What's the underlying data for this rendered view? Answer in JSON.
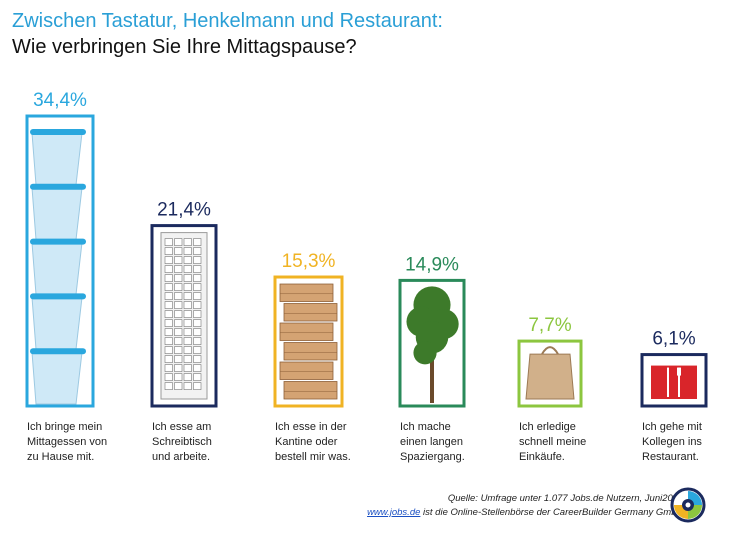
{
  "title": "Zwischen Tastatur, Henkelmann und Restaurant:",
  "subtitle": "Wie verbringen Sie Ihre Mittagspause?",
  "chart_data": {
    "type": "bar",
    "categories": [
      "Ich bringe mein Mittagessen von zu Hause mit.",
      "Ich esse am Schreibtisch und arbeite.",
      "Ich esse in der Kantine oder bestell mir was.",
      "Ich mache einen langen Spaziergang.",
      "Ich erledige schnell meine Einkäufe.",
      "Ich gehe mit Kollegen ins Restaurant."
    ],
    "category_lines": [
      [
        "Ich bringe mein",
        "Mittagessen von",
        "zu Hause mit."
      ],
      [
        "Ich esse am",
        "Schreibtisch",
        "und arbeite."
      ],
      [
        "Ich esse in der",
        "Kantine oder",
        "bestell mir was."
      ],
      [
        "Ich mache",
        "einen langen",
        "Spaziergang."
      ],
      [
        "Ich erledige",
        "schnell meine",
        "Einkäufe."
      ],
      [
        "Ich gehe mit",
        "Kollegen ins",
        "Restaurant."
      ]
    ],
    "values": [
      34.4,
      21.4,
      15.3,
      14.9,
      7.7,
      6.1
    ],
    "value_labels": [
      "34,4%",
      "21,4%",
      "15,3%",
      "14,9%",
      "7,7%",
      "6,1%"
    ],
    "colors": [
      "#2aa7de",
      "#1b2a5e",
      "#f0b323",
      "#2a8a5a",
      "#8cc63f",
      "#1b2a5e"
    ],
    "icons": [
      "plastic-bowls-icon",
      "keyboard-icon",
      "pizza-boxes-icon",
      "tree-icon",
      "paper-bag-icon",
      "napkin-cutlery-icon"
    ],
    "grid": false,
    "legend": "none"
  },
  "source_line": "Quelle: Umfrage unter 1.077 Jobs.de Nutzern, Juni2017.",
  "source_link": "www.jobs.de",
  "source_line2_rest": " ist die Online-Stellenbörse der CareerBuilder Germany GmbH."
}
